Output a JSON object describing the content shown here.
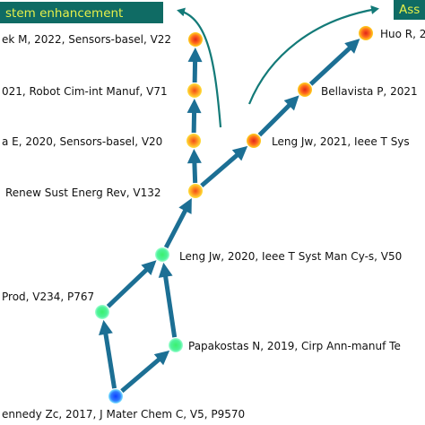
{
  "banners": [
    {
      "id": "system",
      "text": "stem enhancement"
    },
    {
      "id": "assess",
      "text": "Ass"
    }
  ],
  "nodes": [
    {
      "id": "n0",
      "label": "ennedy Zc, 2017, J Mater Chem C, V5, P9570"
    },
    {
      "id": "n1",
      "label": "Papakostas N, 2019, Cirp Ann-manuf Te"
    },
    {
      "id": "n2",
      "label": "Prod, V234, P767"
    },
    {
      "id": "n3",
      "label": "Leng Jw, 2020, Ieee T Syst Man Cy-s, V50"
    },
    {
      "id": "n4",
      "label": "Renew Sust Energ Rev, V132"
    },
    {
      "id": "n5",
      "label": "a E, 2020, Sensors-basel, V20"
    },
    {
      "id": "n6",
      "label": "021, Robot Cim-int Manuf, V71"
    },
    {
      "id": "n7",
      "label": "ek M, 2022, Sensors-basel, V22"
    },
    {
      "id": "n8",
      "label": "Leng Jw, 2021, Ieee T Sys"
    },
    {
      "id": "n9",
      "label": "Bellavista P, 2021"
    },
    {
      "id": "n10",
      "label": "Huo R, 2"
    }
  ],
  "colors": {
    "arrow": "#1c6f94",
    "curve": "#137a78",
    "banner_bg": "#0f6b64",
    "banner_text": "#e6f04a",
    "node_blue": "#1f5cff",
    "node_green": "#33f07a",
    "node_orange": "#ff8a1c",
    "node_red": "#f03a1a",
    "node_yellow": "#f6e02a",
    "label_text": "#111111"
  }
}
